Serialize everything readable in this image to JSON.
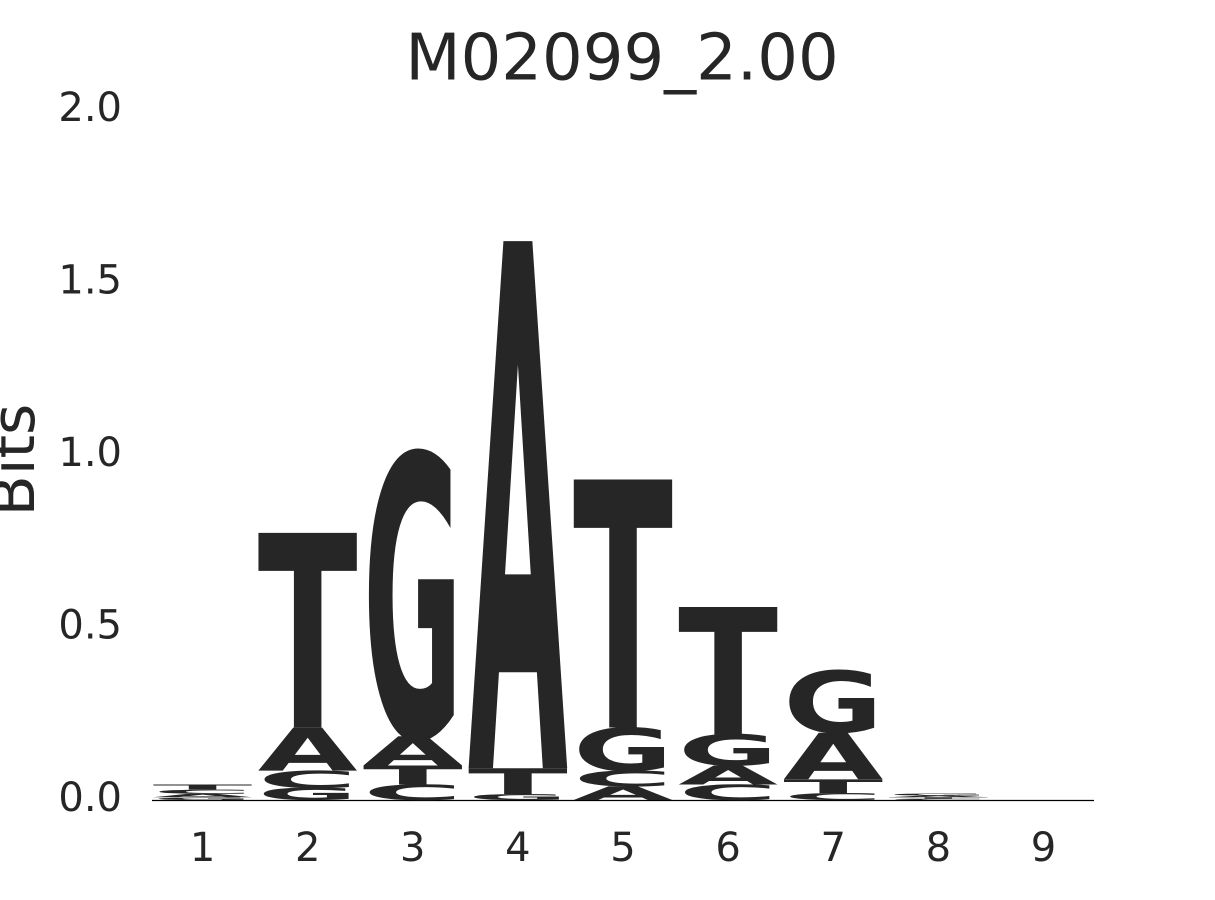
{
  "chart_data": {
    "type": "logo",
    "title": "M02099_2.00",
    "ylabel": "Bits",
    "categories": [
      "1",
      "2",
      "3",
      "4",
      "5",
      "6",
      "7",
      "8",
      "9"
    ],
    "series": [
      {
        "name": "A",
        "color": "#008000",
        "values": [
          0.01,
          0.125,
          0.085,
          1.53,
          0.04,
          0.055,
          0.135,
          0.005,
          0
        ]
      },
      {
        "name": "C",
        "color": "#0000ff",
        "values": [
          0.012,
          0.05,
          0.045,
          0,
          0.045,
          0.045,
          0.02,
          0.004,
          0
        ]
      },
      {
        "name": "G",
        "color": "#ffa500",
        "values": [
          0.008,
          0.035,
          0.82,
          0.017,
          0.125,
          0.09,
          0.18,
          0.006,
          0
        ]
      },
      {
        "name": "T",
        "color": "#ff0000",
        "values": [
          0.015,
          0.565,
          0.055,
          0.075,
          0.72,
          0.37,
          0.04,
          0.004,
          0
        ]
      }
    ],
    "ylim": [
      0,
      2
    ],
    "yticks": [
      {
        "value": 0,
        "label": "0.0"
      },
      {
        "value": 0.5,
        "label": "0.5"
      },
      {
        "value": 1,
        "label": "1.0"
      },
      {
        "value": 1.5,
        "label": "1.5"
      },
      {
        "value": 2,
        "label": "2.0"
      }
    ]
  }
}
